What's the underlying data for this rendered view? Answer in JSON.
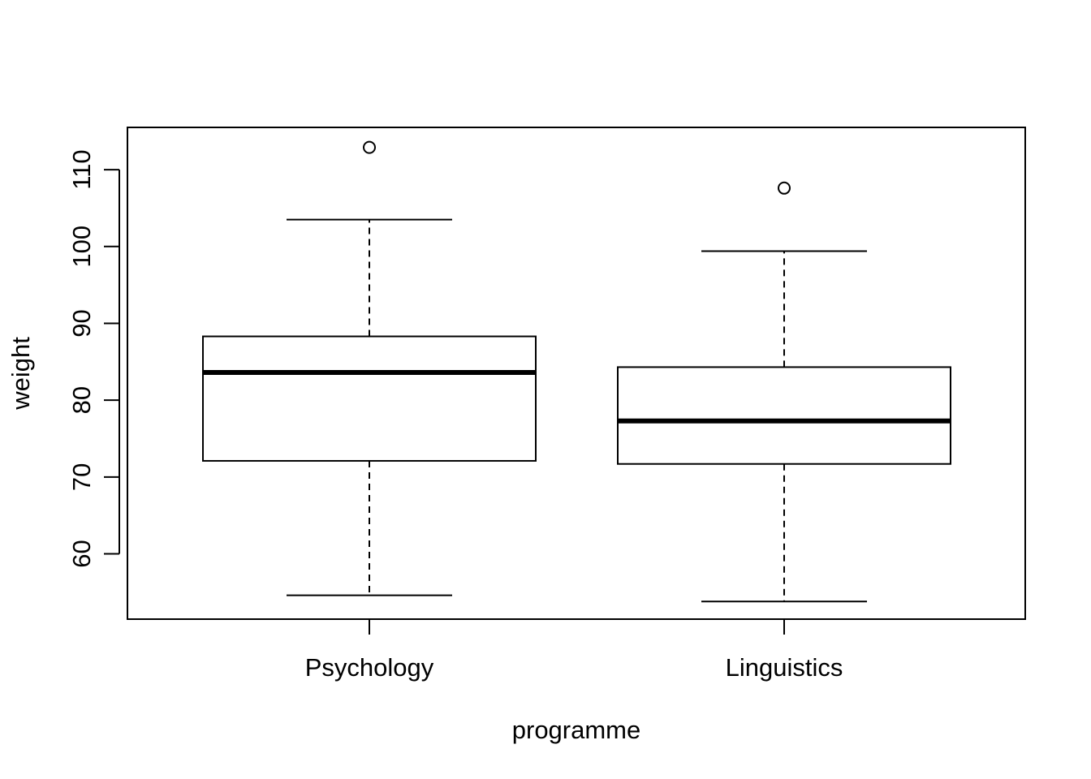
{
  "chart_data": {
    "type": "boxplot",
    "title": "",
    "xlabel": "programme",
    "ylabel": "weight",
    "ylim": [
      51.5,
      115.5
    ],
    "yticks": [
      60,
      70,
      80,
      90,
      100,
      110
    ],
    "grid": false,
    "legend": "none",
    "categories": [
      "Psychology",
      "Linguistics"
    ],
    "boxes": [
      {
        "category": "Psychology",
        "whisker_low": 54.6,
        "q1": 72.1,
        "median": 83.6,
        "q3": 88.3,
        "whisker_high": 103.5,
        "outliers": [
          112.9
        ]
      },
      {
        "category": "Linguistics",
        "whisker_low": 53.8,
        "q1": 71.7,
        "median": 77.3,
        "q3": 84.3,
        "whisker_high": 99.4,
        "outliers": [
          107.6
        ]
      }
    ]
  }
}
